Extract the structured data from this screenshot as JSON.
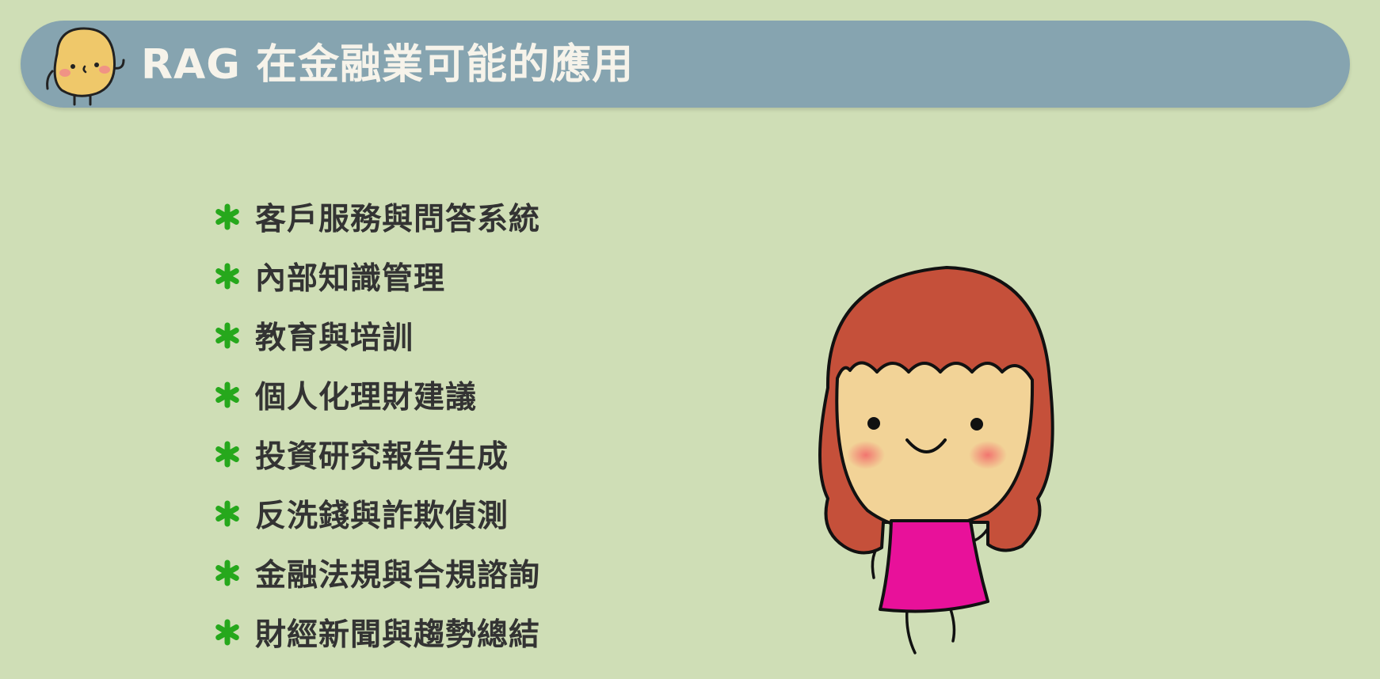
{
  "slide": {
    "title": "RAG 在金融業可能的應用",
    "bullets": [
      "客戶服務與問答系統",
      "內部知識管理",
      "教育與培訓",
      "個人化理財建議",
      "投資研究報告生成",
      "反洗錢與詐欺偵測",
      "金融法規與合規諮詢",
      "財經新聞與趨勢總結"
    ]
  },
  "icons": {
    "title": "potato-mascot-icon",
    "bullet": "green-asterisk-icon",
    "illustration": "red-haired-girl-illustration"
  },
  "colors": {
    "background": "#cfdeb6",
    "title_bar": "#86a4b0",
    "title_text": "#f6f3ea",
    "bullet_mark": "#26a81c",
    "bullet_text": "#333333",
    "hair": "#c5503a",
    "dress": "#e8119a",
    "skin": "#f2d397"
  }
}
